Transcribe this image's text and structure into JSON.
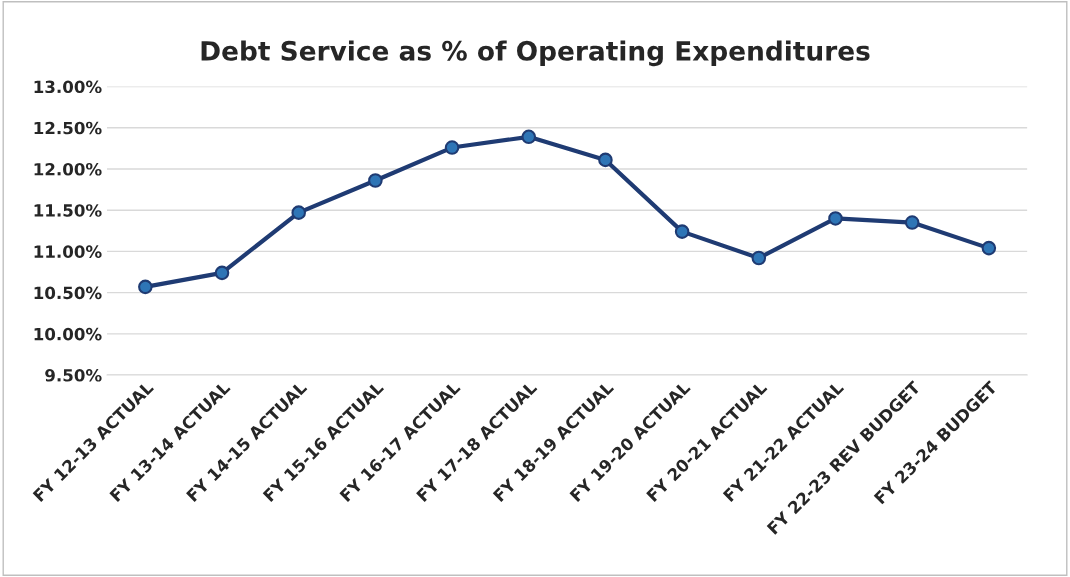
{
  "chart_data": {
    "type": "line",
    "title": "Debt Service as % of Operating Expenditures",
    "categories": [
      "FY 12-13 ACTUAL",
      "FY 13-14 ACTUAL",
      "FY 14-15 ACTUAL",
      "FY 15-16 ACTUAL",
      "FY 16-17 ACTUAL",
      "FY 17-18 ACTUAL",
      "FY 18-19 ACTUAL",
      "FY 19-20 ACTUAL",
      "FY 20-21 ACTUAL",
      "FY 21-22 ACTUAL",
      "FY 22-23 REV BUDGET",
      "FY 23-24 BUDGET"
    ],
    "series": [
      {
        "color": "#1f3b73",
        "values": [
          10.57,
          10.74,
          11.47,
          11.86,
          12.26,
          12.39,
          12.11,
          11.24,
          10.92,
          11.4,
          11.35,
          11.04
        ]
      }
    ],
    "ylim": [
      9.5,
      13.0
    ],
    "yticks": [
      {
        "value": 9.5,
        "label": "9.50%"
      },
      {
        "value": 10.0,
        "label": "10.00%"
      },
      {
        "value": 10.5,
        "label": "10.50%"
      },
      {
        "value": 11.0,
        "label": "11.00%"
      },
      {
        "value": 11.5,
        "label": "11.50%"
      },
      {
        "value": 12.0,
        "label": "12.00%"
      },
      {
        "value": 12.5,
        "label": "12.50%"
      },
      {
        "value": 13.0,
        "label": "13.00%"
      }
    ],
    "grid": "y",
    "marker": "circle",
    "line_style": "solid"
  }
}
